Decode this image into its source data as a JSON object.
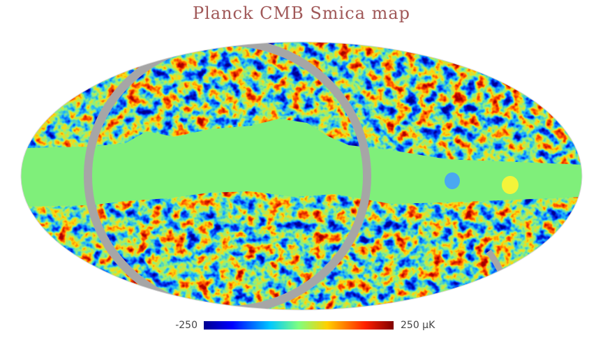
{
  "title": "Planck CMB Smica map",
  "colorbar": {
    "min_label": "-250",
    "max_label": "250 μK"
  }
}
